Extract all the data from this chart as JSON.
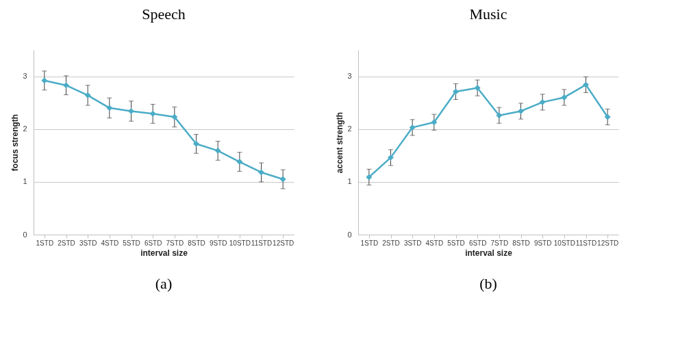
{
  "chart_data": [
    {
      "type": "line",
      "title": "Speech",
      "xlabel": "interval size",
      "ylabel": "focus strength",
      "categories": [
        "1STD",
        "2STD",
        "3STD",
        "4STD",
        "5STD",
        "6STD",
        "7STD",
        "8STD",
        "9STD",
        "10STD",
        "11STD",
        "12STD"
      ],
      "series": [
        {
          "color": "#4bacc6",
          "values": [
            2.92,
            2.83,
            2.64,
            2.4,
            2.34,
            2.29,
            2.23,
            1.72,
            1.59,
            1.38,
            1.18,
            1.05
          ],
          "errors": [
            0.18,
            0.18,
            0.19,
            0.19,
            0.19,
            0.18,
            0.19,
            0.18,
            0.18,
            0.18,
            0.18,
            0.18
          ]
        }
      ],
      "ylim": [
        0,
        3.5
      ],
      "yticks": [
        0,
        1,
        2,
        3
      ],
      "grid": "y",
      "marker": "diamond",
      "line_style": "solid",
      "annotations": [
        "(a)"
      ]
    },
    {
      "type": "line",
      "title": "Music",
      "xlabel": "interval size",
      "ylabel": "accent strength",
      "categories": [
        "1STD",
        "2STD",
        "3STD",
        "4STD",
        "5STD",
        "6STD",
        "7STD",
        "8STD",
        "9STD",
        "10STD",
        "11STD",
        "12STD"
      ],
      "series": [
        {
          "color": "#4bacc6",
          "values": [
            1.09,
            1.46,
            2.03,
            2.13,
            2.71,
            2.78,
            2.26,
            2.34,
            2.51,
            2.6,
            2.84,
            2.23
          ],
          "errors": [
            0.15,
            0.15,
            0.15,
            0.15,
            0.15,
            0.15,
            0.15,
            0.15,
            0.15,
            0.15,
            0.15,
            0.15
          ]
        }
      ],
      "ylim": [
        0,
        3.5
      ],
      "yticks": [
        0,
        1,
        2,
        3
      ],
      "grid": "y",
      "marker": "diamond",
      "line_style": "solid",
      "annotations": [
        "(b)"
      ]
    }
  ]
}
